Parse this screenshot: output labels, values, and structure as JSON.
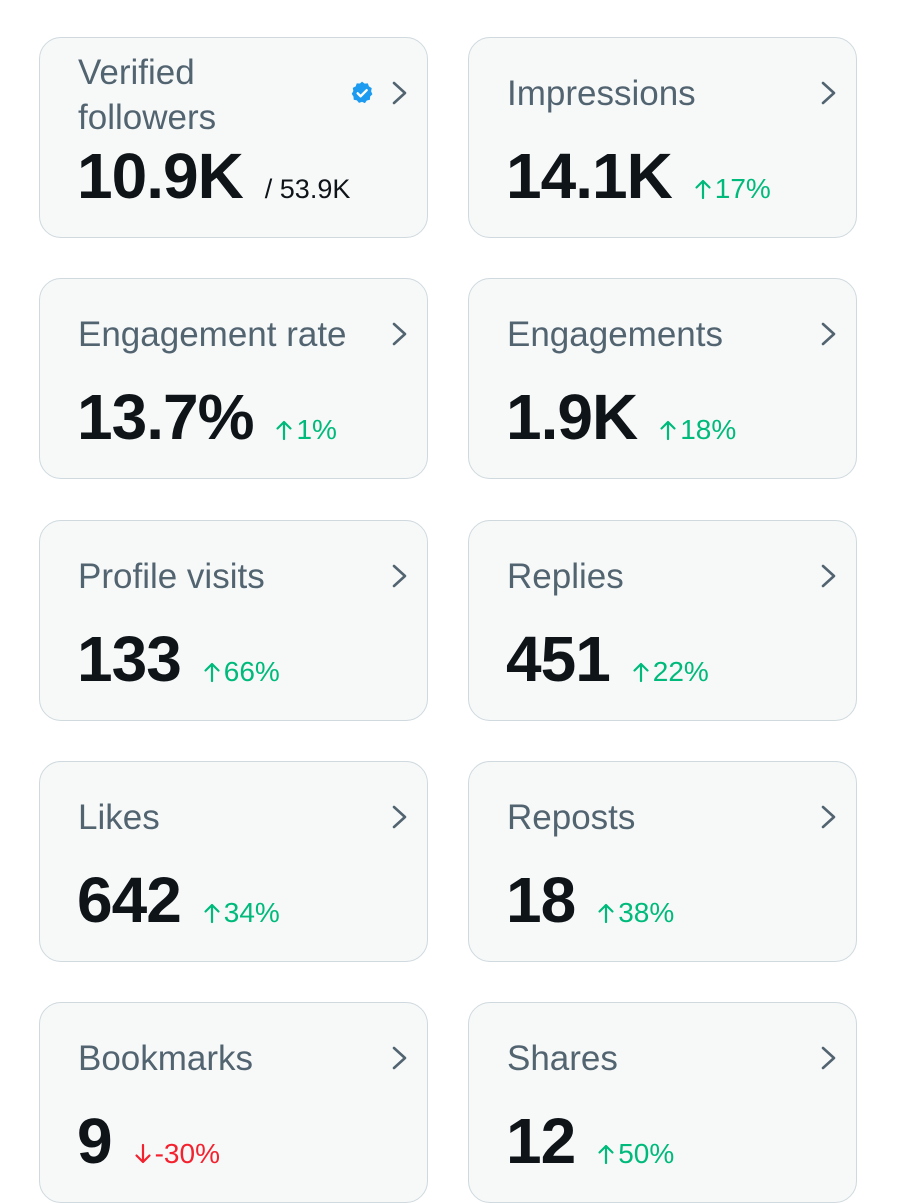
{
  "colors": {
    "card_bg": "#f7f9f9",
    "card_border": "#cfd9de",
    "title": "#536471",
    "value": "#0f1419",
    "up": "#00ba7c",
    "down": "#f4212e",
    "verified": "#1d9bf0"
  },
  "cards": [
    {
      "title": "Verified followers",
      "value": "10.9K",
      "total": "/ 53.9K",
      "icon": "verified-badge-icon"
    },
    {
      "title": "Impressions",
      "value": "14.1K",
      "change": "17%",
      "direction": "up"
    },
    {
      "title": "Engagement rate",
      "value": "13.7%",
      "change": "1%",
      "direction": "up"
    },
    {
      "title": "Engagements",
      "value": "1.9K",
      "change": "18%",
      "direction": "up"
    },
    {
      "title": "Profile visits",
      "value": "133",
      "change": "66%",
      "direction": "up"
    },
    {
      "title": "Replies",
      "value": "451",
      "change": "22%",
      "direction": "up"
    },
    {
      "title": "Likes",
      "value": "642",
      "change": "34%",
      "direction": "up"
    },
    {
      "title": "Reposts",
      "value": "18",
      "change": "38%",
      "direction": "up"
    },
    {
      "title": "Bookmarks",
      "value": "9",
      "change": "-30%",
      "direction": "down"
    },
    {
      "title": "Shares",
      "value": "12",
      "change": "50%",
      "direction": "up"
    }
  ]
}
